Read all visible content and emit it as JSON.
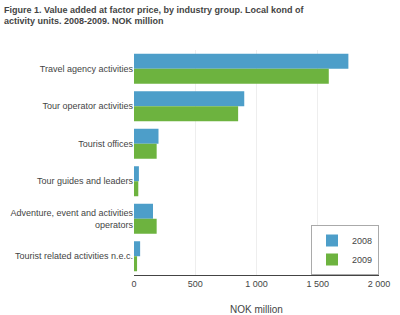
{
  "chart_data": {
    "type": "bar",
    "orientation": "horizontal",
    "title": "Figure 1. Value added at factor price, by industry group. Local kond of\nactivity units. 2008-2009. NOK million",
    "categories": [
      "Travel agency activities",
      "Tour operator activities",
      "Tourist offices",
      "Tour guides and leaders",
      "Adventure, event and activities\noperators",
      "Tourist related activities n.e.c."
    ],
    "series": [
      {
        "name": "2008",
        "color": "#4d9ec9",
        "values": [
          1750,
          900,
          200,
          40,
          155,
          50
        ]
      },
      {
        "name": "2009",
        "color": "#6db33f",
        "values": [
          1590,
          850,
          185,
          35,
          185,
          25
        ]
      }
    ],
    "xlabel": "NOK million",
    "xlim": [
      0,
      2000
    ],
    "xticks": [
      0,
      500,
      {
        "value": 1000,
        "label": "1 000"
      },
      {
        "value": 1500,
        "label": "1 500"
      },
      {
        "value": 2000,
        "label": "2 000"
      }
    ],
    "grid": true,
    "legend": "lower right"
  }
}
